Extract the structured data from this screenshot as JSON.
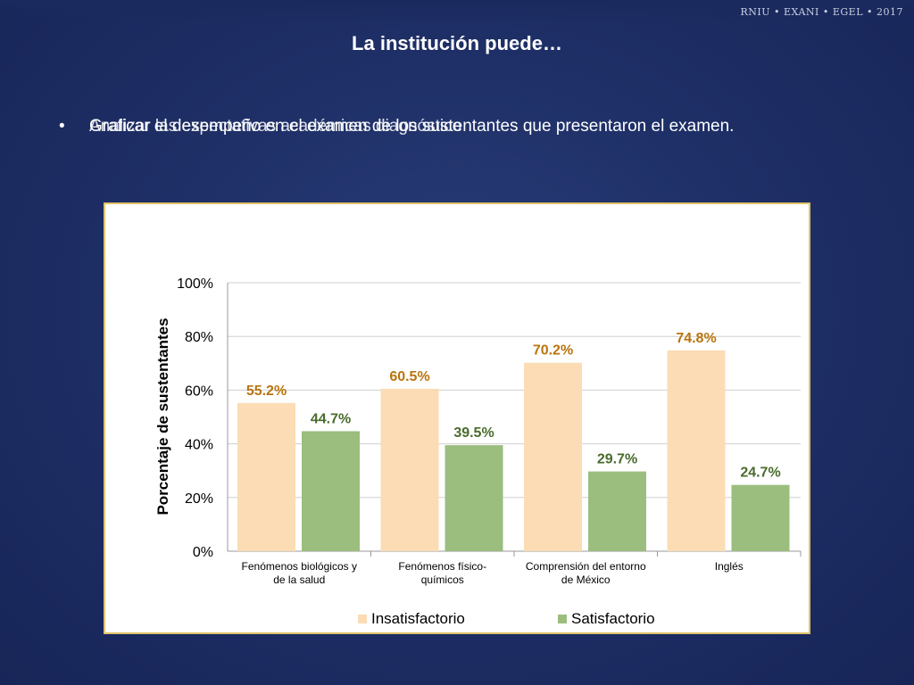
{
  "header": {
    "brand": "RNIU • EXANI • EGEL • 2017"
  },
  "slide": {
    "title": "La institución puede…",
    "bullet_symbol": "•",
    "bullet_text": "Graficar el desempeño en el examen de los sustentantes que presentaron el examen.",
    "bullet_overlay_text": "Analizar las expectativas académicas diagnóstico"
  },
  "chart_data": {
    "type": "bar",
    "categories": [
      [
        "Fenómenos biológicos y",
        "de la salud"
      ],
      [
        "Fenómenos físico-",
        "químicos"
      ],
      [
        "Comprensión del entorno",
        "de México"
      ],
      [
        "Inglés"
      ]
    ],
    "series": [
      {
        "name": "Insatisfactorio",
        "values": [
          55.2,
          60.5,
          70.2,
          74.8
        ],
        "labels": [
          "55.2%",
          "60.5%",
          "70.2%",
          "74.8%"
        ],
        "color": "#fbdcb4",
        "label_color": "#b8740f"
      },
      {
        "name": "Satisfactorio",
        "values": [
          44.7,
          39.5,
          29.7,
          24.7
        ],
        "labels": [
          "44.7%",
          "39.5%",
          "29.7%",
          "24.7%"
        ],
        "color": "#9bbd7e",
        "label_color": "#4a6b2c"
      }
    ],
    "ylabel": "Porcentaje de sustentantes",
    "ylim": [
      0,
      100
    ],
    "yticks": [
      0,
      20,
      40,
      60,
      80,
      100
    ],
    "ytick_labels": [
      "0%",
      "20%",
      "40%",
      "60%",
      "80%",
      "100%"
    ],
    "grid": true,
    "legend": "bottom"
  }
}
